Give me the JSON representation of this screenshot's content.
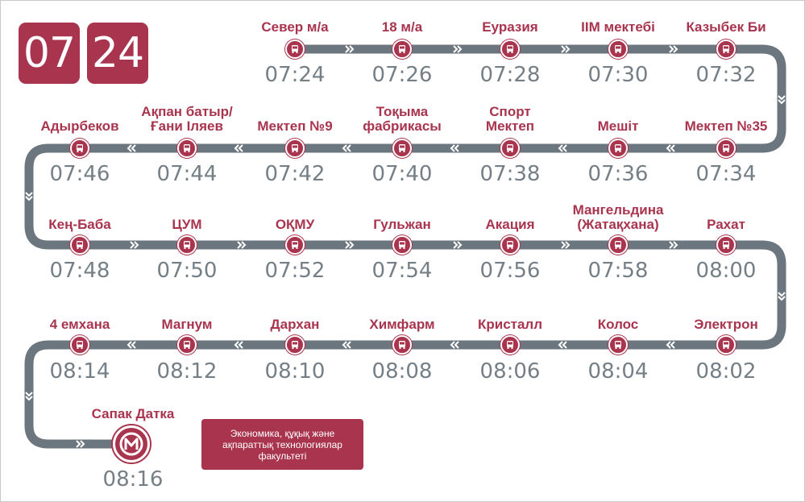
{
  "header": {
    "hour": "07",
    "minute": "24"
  },
  "colors": {
    "accent": "#a8344e",
    "route_line": "#6b767e",
    "time_text": "#757f86"
  },
  "rows": [
    {
      "stops": [
        {
          "name": "Север м/а",
          "time": "07:24"
        },
        {
          "name": "18 м/а",
          "time": "07:26"
        },
        {
          "name": "Еуразия",
          "time": "07:28"
        },
        {
          "name": "IIM мектебі",
          "time": "07:30"
        },
        {
          "name": "Казыбек Би",
          "time": "07:32"
        }
      ]
    },
    {
      "stops": [
        {
          "name": "Адырбеков",
          "time": "07:46"
        },
        {
          "name": "Ақпан батыр/ Ғани Іляев",
          "time": "07:44"
        },
        {
          "name": "Мектеп №9",
          "time": "07:42"
        },
        {
          "name": "Тоқыма фабрикасы",
          "time": "07:40"
        },
        {
          "name": "Спорт Мектеп",
          "time": "07:38"
        },
        {
          "name": "Мешіт",
          "time": "07:36"
        },
        {
          "name": "Мектеп №35",
          "time": "07:34"
        }
      ]
    },
    {
      "stops": [
        {
          "name": "Кең-Баба",
          "time": "07:48"
        },
        {
          "name": "ЦУМ",
          "time": "07:50"
        },
        {
          "name": "ОҚМУ",
          "time": "07:52"
        },
        {
          "name": "Гульжан",
          "time": "07:54"
        },
        {
          "name": "Акация",
          "time": "07:56"
        },
        {
          "name": "Мангельдина (Жатақхана)",
          "time": "07:58"
        },
        {
          "name": "Рахат",
          "time": "08:00"
        }
      ]
    },
    {
      "stops": [
        {
          "name": "4 емхана",
          "time": "08:14"
        },
        {
          "name": "Магнум",
          "time": "08:12"
        },
        {
          "name": "Дархан",
          "time": "08:10"
        },
        {
          "name": "Химфарм",
          "time": "08:08"
        },
        {
          "name": "Кристалл",
          "time": "08:06"
        },
        {
          "name": "Колос",
          "time": "08:04"
        },
        {
          "name": "Электрон",
          "time": "08:02"
        }
      ]
    }
  ],
  "terminal": {
    "name": "Сапак Датка",
    "time": "08:16",
    "icon": "metro-m-icon"
  },
  "faculty": {
    "text": "Экономика, құқық және ақпараттық технологиялар факультеті"
  }
}
